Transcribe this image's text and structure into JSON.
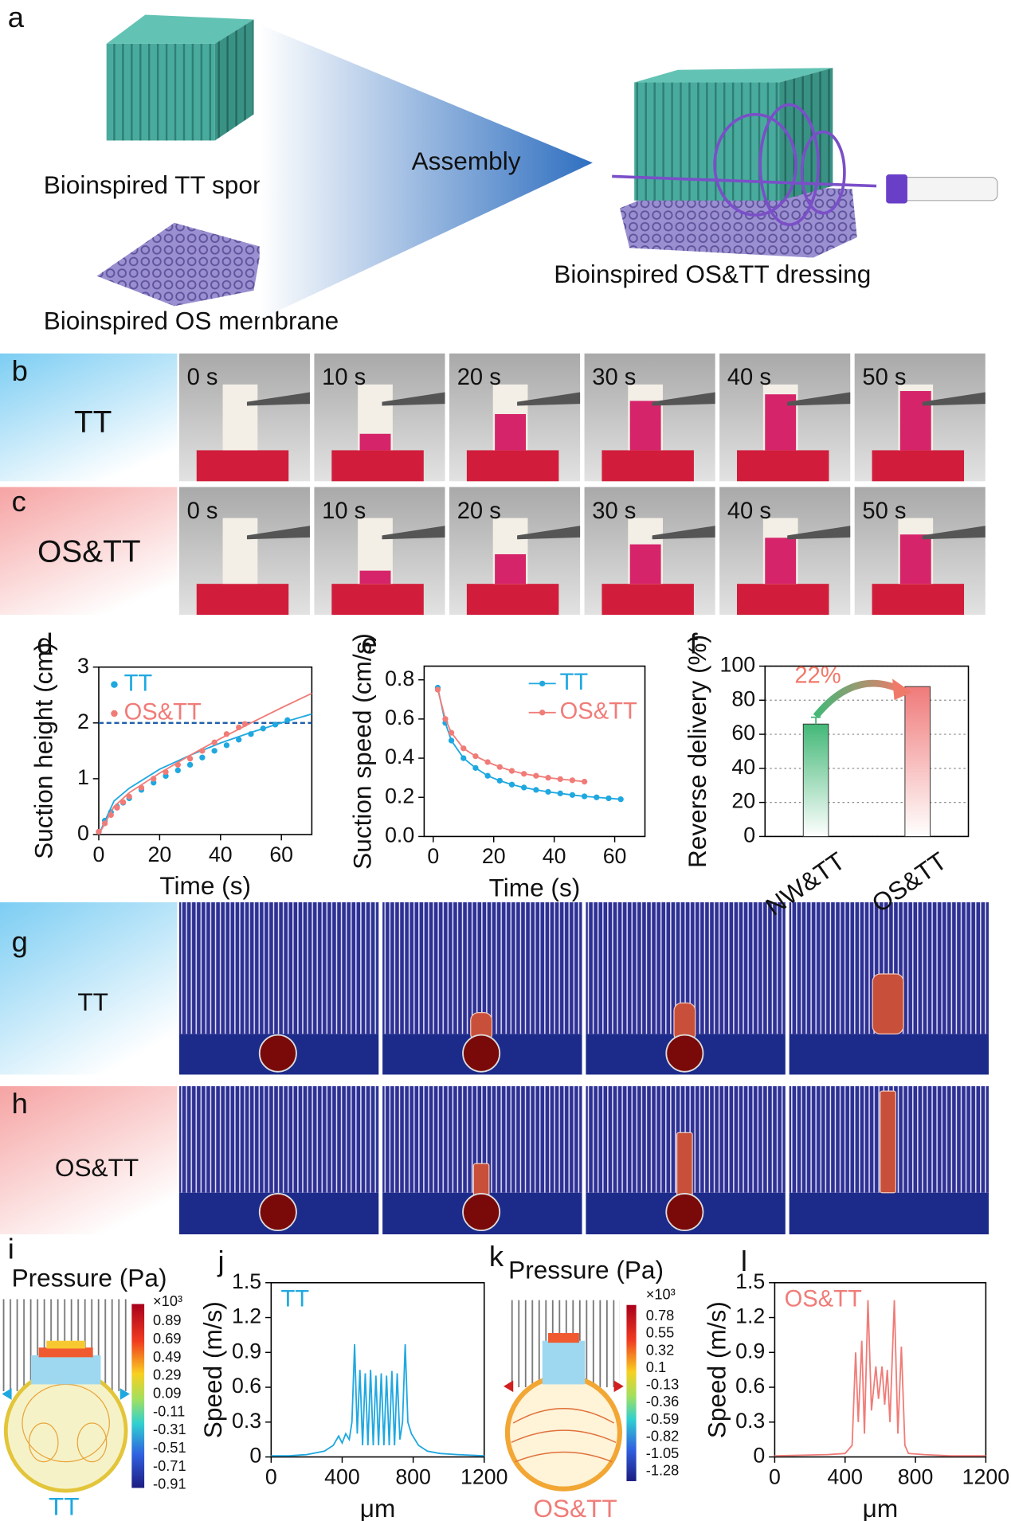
{
  "figure": {
    "panel_a": {
      "label": "a",
      "sponge": "Bioinspired TT sponge",
      "membrane": "Bioinspired OS membrane",
      "arrow": "Assembly",
      "dressing": "Bioinspired OS&TT dressing"
    },
    "panel_b": {
      "label": "b",
      "sample": "TT",
      "times": [
        "0 s",
        "10 s",
        "20 s",
        "30 s",
        "40 s",
        "50 s"
      ]
    },
    "panel_c": {
      "label": "c",
      "sample": "OS&TT",
      "times": [
        "0 s",
        "10 s",
        "20 s",
        "30 s",
        "40 s",
        "50 s"
      ]
    },
    "panel_g": {
      "label": "g",
      "sample": "TT"
    },
    "panel_h": {
      "label": "h",
      "sample": "OS&TT"
    },
    "panel_i": {
      "label": "i",
      "title": "Pressure (Pa)",
      "multiplier": "×10³",
      "ticks": [
        0.89,
        0.69,
        0.49,
        0.29,
        0.09,
        -0.11,
        -0.31,
        -0.51,
        -0.71,
        -0.91
      ],
      "caption": "TT"
    },
    "panel_k": {
      "label": "k",
      "title": "Pressure (Pa)",
      "multiplier": "×10³",
      "ticks": [
        0.78,
        0.55,
        0.32,
        0.1,
        -0.13,
        -0.36,
        -0.59,
        -0.82,
        -1.05,
        -1.28
      ],
      "caption": "OS&TT"
    }
  },
  "chart_data": [
    {
      "label": "d",
      "type": "scatter",
      "xlabel": "Time (s)",
      "ylabel": "Suction height (cm)",
      "xlim": [
        0,
        70
      ],
      "xticks": [
        0,
        20,
        40,
        60
      ],
      "ylim": [
        0,
        3
      ],
      "yticks": [
        0,
        1,
        2,
        3
      ],
      "reference_line": 2,
      "reference_color": "#1f5fa8",
      "legend": "upper left",
      "series": [
        {
          "name": "TT",
          "color": "#1fa8e0",
          "x": [
            0,
            2,
            4,
            6,
            8,
            10,
            14,
            18,
            22,
            26,
            30,
            34,
            38,
            42,
            46,
            50,
            54,
            58,
            62
          ],
          "values": [
            0.05,
            0.25,
            0.4,
            0.5,
            0.57,
            0.65,
            0.8,
            0.93,
            1.05,
            1.15,
            1.25,
            1.38,
            1.5,
            1.6,
            1.7,
            1.8,
            1.9,
            1.97,
            2.05
          ],
          "fit_x": [
            0,
            5,
            10,
            20,
            30,
            40,
            50,
            60,
            70
          ],
          "fit_values": [
            0,
            0.6,
            0.83,
            1.17,
            1.42,
            1.64,
            1.83,
            2.0,
            2.16
          ]
        },
        {
          "name": "OS&TT",
          "color": "#f07c78",
          "x": [
            0,
            2,
            4,
            6,
            8,
            10,
            14,
            18,
            22,
            26,
            30,
            34,
            38,
            42,
            46,
            48
          ],
          "values": [
            0.05,
            0.2,
            0.35,
            0.48,
            0.58,
            0.68,
            0.84,
            1.0,
            1.12,
            1.25,
            1.36,
            1.5,
            1.65,
            1.8,
            1.92,
            1.98
          ],
          "fit_x": [
            0,
            5,
            10,
            20,
            30,
            40,
            50,
            60,
            70
          ],
          "fit_values": [
            0,
            0.5,
            0.75,
            1.1,
            1.42,
            1.72,
            2.0,
            2.27,
            2.53
          ]
        }
      ]
    },
    {
      "label": "e",
      "type": "line",
      "markers": true,
      "xlabel": "Time (s)",
      "ylabel": "Suction speed (cm/s)",
      "xlim": [
        -3,
        70
      ],
      "xticks": [
        0,
        20,
        40,
        60
      ],
      "ylim": [
        0,
        0.87
      ],
      "yticks": [
        {
          "value": 0,
          "label": "0.0"
        },
        0.2,
        0.4,
        0.6,
        0.8
      ],
      "legend": "upper right",
      "series": [
        {
          "name": "TT",
          "color": "#1fa8e0",
          "x": [
            1.5,
            4,
            6,
            10,
            14,
            18,
            22,
            26,
            30,
            34,
            38,
            42,
            46,
            50,
            54,
            58,
            62
          ],
          "values": [
            0.76,
            0.58,
            0.49,
            0.4,
            0.35,
            0.31,
            0.285,
            0.265,
            0.25,
            0.238,
            0.228,
            0.22,
            0.212,
            0.205,
            0.2,
            0.195,
            0.19
          ]
        },
        {
          "name": "OS&TT",
          "color": "#f07c78",
          "x": [
            1.5,
            4,
            6,
            10,
            14,
            18,
            22,
            26,
            30,
            34,
            38,
            42,
            46,
            50
          ],
          "values": [
            0.75,
            0.6,
            0.53,
            0.45,
            0.41,
            0.38,
            0.355,
            0.335,
            0.32,
            0.31,
            0.3,
            0.293,
            0.287,
            0.28
          ]
        }
      ]
    },
    {
      "label": "f",
      "type": "bar",
      "ylabel": "Reverse delivery (%)",
      "categories": [
        "NW&TT",
        "OS&TT"
      ],
      "values": [
        66,
        88
      ],
      "errors": [
        4,
        null
      ],
      "colors": [
        "#43b877",
        "#f07a7a"
      ],
      "ylim": [
        0,
        100
      ],
      "yticks": [
        0,
        20,
        40,
        60,
        80,
        100
      ],
      "grid": true,
      "annotation": "22%"
    },
    {
      "label": "j",
      "type": "line",
      "xlabel": "μm",
      "ylabel": "Speed (m/s)",
      "xlim": [
        0,
        1200
      ],
      "xticks": [
        0,
        400,
        800,
        1200
      ],
      "ylim": [
        0,
        1.5
      ],
      "yticks": [
        0,
        0.3,
        0.6,
        0.9,
        1.2,
        1.5
      ],
      "legend": "upper left",
      "series": [
        {
          "name": "TT",
          "color": "#1fa8e0",
          "x": [
            0,
            100,
            200,
            300,
            350,
            380,
            400,
            420,
            440,
            455,
            470,
            485,
            500,
            515,
            530,
            545,
            560,
            575,
            590,
            605,
            620,
            635,
            650,
            665,
            680,
            695,
            710,
            725,
            740,
            755,
            770,
            790,
            810,
            830,
            880,
            950,
            1050,
            1200
          ],
          "values": [
            0.01,
            0.01,
            0.02,
            0.05,
            0.1,
            0.18,
            0.12,
            0.2,
            0.15,
            0.3,
            0.97,
            0.2,
            0.75,
            0.1,
            0.72,
            0.1,
            0.75,
            0.1,
            0.7,
            0.1,
            0.72,
            0.1,
            0.7,
            0.1,
            0.74,
            0.1,
            0.72,
            0.15,
            0.3,
            0.97,
            0.3,
            0.2,
            0.15,
            0.1,
            0.05,
            0.03,
            0.02,
            0.01
          ]
        }
      ]
    },
    {
      "label": "l",
      "type": "line",
      "xlabel": "μm",
      "ylabel": "Speed (m/s)",
      "xlim": [
        0,
        1200
      ],
      "xticks": [
        0,
        400,
        800,
        1200
      ],
      "ylim": [
        0,
        1.5
      ],
      "yticks": [
        0,
        0.3,
        0.6,
        0.9,
        1.2,
        1.5
      ],
      "legend": "upper left",
      "series": [
        {
          "name": "OS&TT",
          "color": "#f07c78",
          "x": [
            0,
            300,
            400,
            440,
            460,
            475,
            495,
            510,
            530,
            550,
            575,
            590,
            610,
            625,
            640,
            655,
            680,
            700,
            720,
            740,
            760,
            850,
            1000,
            1200
          ],
          "values": [
            0.01,
            0.02,
            0.03,
            0.1,
            0.9,
            0.3,
            1.0,
            0.2,
            1.35,
            0.4,
            0.78,
            0.5,
            0.78,
            0.45,
            0.75,
            0.3,
            1.35,
            0.2,
            0.95,
            0.1,
            0.03,
            0.02,
            0.01,
            0.01
          ]
        }
      ]
    }
  ]
}
